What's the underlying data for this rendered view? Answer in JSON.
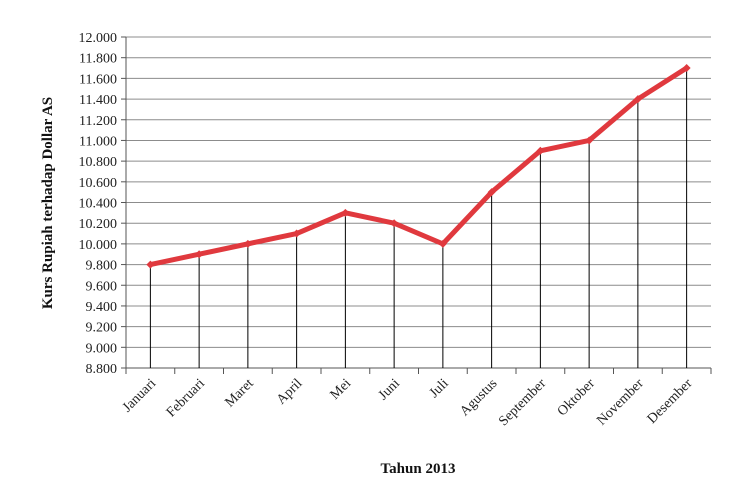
{
  "chart_data": {
    "type": "line",
    "title": "",
    "xlabel": "Tahun 2013",
    "ylabel": "Kurs Rupiah terhadap Dollar AS",
    "categories": [
      "Januari",
      "Februari",
      "Maret",
      "April",
      "Mei",
      "Juni",
      "Juli",
      "Agustus",
      "September",
      "Oktober",
      "November",
      "Desember"
    ],
    "series": [
      {
        "values": [
          9800,
          9900,
          10000,
          10100,
          10300,
          10200,
          10000,
          10500,
          10900,
          11000,
          11400,
          11700
        ],
        "color": "#e0393e"
      }
    ],
    "ylim": [
      8800,
      12000
    ],
    "yticks": [
      "8.800",
      "9.000",
      "9.200",
      "9.400",
      "9.600",
      "9.800",
      "10.000",
      "10.200",
      "10.400",
      "10.600",
      "10.800",
      "11.000",
      "11.200",
      "11.400",
      "11.600",
      "11.800",
      "12.000"
    ],
    "grid": true,
    "drop_lines": true,
    "legend": "none"
  }
}
